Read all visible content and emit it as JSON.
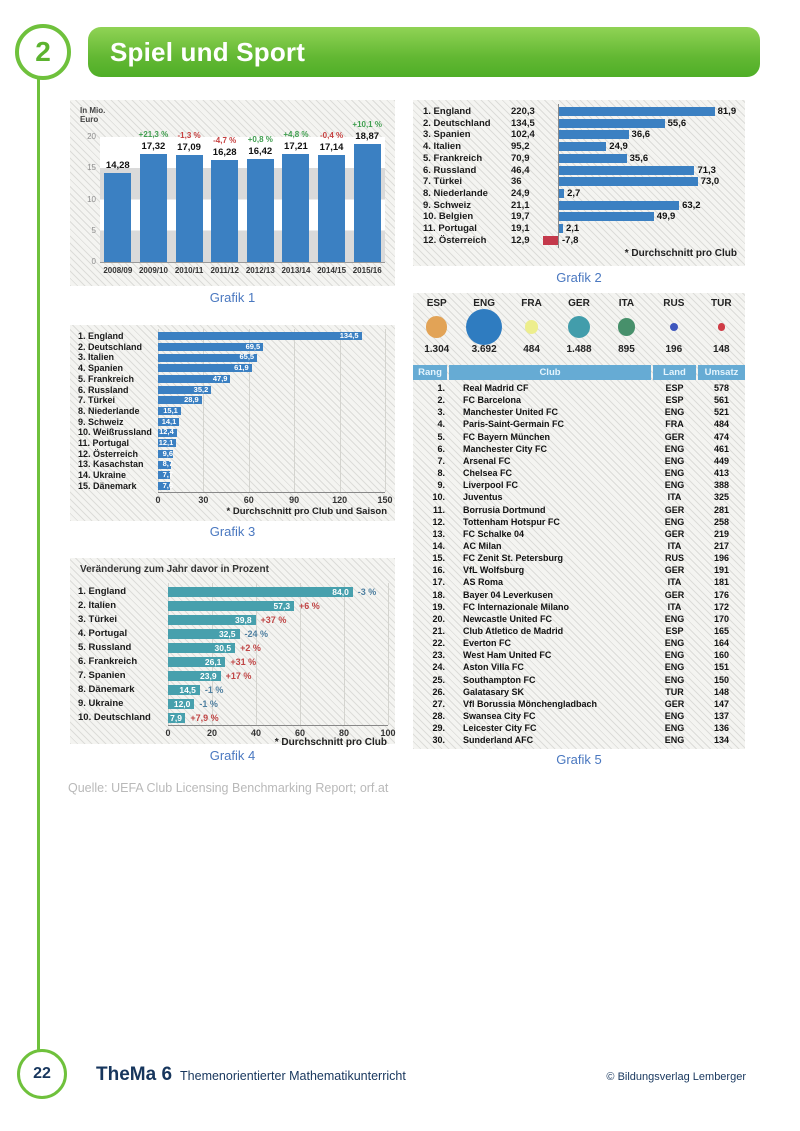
{
  "header": {
    "chapter_number": "2",
    "title": "Spiel und Sport"
  },
  "source_line": "Quelle: UEFA Club Licensing Benchmarking Report; orf.at",
  "footer": {
    "page_number": "22",
    "series_title": "TheMa 6",
    "series_subtitle": "Themenorientierter Mathematikunterricht",
    "copyright": "© Bildungsverlag Lemberger"
  },
  "colors": {
    "green": "#6fc13c",
    "bar_blue": "#3b80c2",
    "bar_teal": "#47a0ad",
    "bar_red": "#c4394b",
    "pct_green": "#3f9e4f",
    "pct_red": "#c64040",
    "pct_neg_blue": "#4e7fa0",
    "caption_blue": "#4a78c0",
    "navy": "#17365d",
    "table_header_blue": "#66abd4"
  },
  "chart_data": [
    {
      "id": "grafik1",
      "type": "bar",
      "caption": "Grafik 1",
      "unit_label_lines": [
        "In Mio.",
        "Euro"
      ],
      "categories": [
        "2008/09",
        "2009/10",
        "2010/11",
        "2011/12",
        "2012/13",
        "2013/14",
        "2014/15",
        "2015/16"
      ],
      "values": [
        14.28,
        17.32,
        17.09,
        16.28,
        16.42,
        17.21,
        17.14,
        18.87
      ],
      "value_labels": [
        "14,28",
        "17,32",
        "17,09",
        "16,28",
        "16,42",
        "17,21",
        "17,14",
        "18,87"
      ],
      "change_labels": [
        "",
        "+21,3 %",
        "-1,3 %",
        "-4,7 %",
        "+0,8 %",
        "+4,8 %",
        "-0,4 %",
        "+10,1 %"
      ],
      "change_positive": [
        null,
        true,
        false,
        false,
        true,
        true,
        false,
        true
      ],
      "ylim": [
        0,
        20
      ],
      "yticks": [
        0,
        5,
        10,
        15,
        20
      ],
      "grid": "zebra-bands",
      "legend": "none"
    },
    {
      "id": "grafik2",
      "type": "hbar",
      "caption": "Grafik 2",
      "footnote": "* Durchschnitt pro Club",
      "xmax": 82,
      "rows": [
        {
          "label": "1. England",
          "total": "220,3",
          "value": 81.9,
          "value_label": "81,9"
        },
        {
          "label": "2. Deutschland",
          "total": "134,5",
          "value": 55.6,
          "value_label": "55,6"
        },
        {
          "label": "3. Spanien",
          "total": "102,4",
          "value": 36.6,
          "value_label": "36,6"
        },
        {
          "label": "4. Italien",
          "total": "95,2",
          "value": 24.9,
          "value_label": "24,9"
        },
        {
          "label": "5. Frankreich",
          "total": "70,9",
          "value": 35.6,
          "value_label": "35,6"
        },
        {
          "label": "6. Russland",
          "total": "46,4",
          "value": 71.3,
          "value_label": "71,3"
        },
        {
          "label": "7. Türkei",
          "total": "36",
          "value": 73.0,
          "value_label": "73,0"
        },
        {
          "label": "8. Niederlande",
          "total": "24,9",
          "value": 2.7,
          "value_label": "2,7"
        },
        {
          "label": "9. Schweiz",
          "total": "21,1",
          "value": 63.2,
          "value_label": "63,2"
        },
        {
          "label": "10. Belgien",
          "total": "19,7",
          "value": 49.9,
          "value_label": "49,9"
        },
        {
          "label": "11. Portugal",
          "total": "19,1",
          "value": 2.1,
          "value_label": "2,1"
        },
        {
          "label": "12. Österreich",
          "total": "12,9",
          "value": -7.8,
          "value_label": "-7,8"
        }
      ]
    },
    {
      "id": "grafik3",
      "type": "hbar",
      "caption": "Grafik 3",
      "footnote": "* Durchschnitt pro Club und Saison",
      "xticks": [
        0,
        30,
        60,
        90,
        120,
        150
      ],
      "xmax": 150,
      "rows": [
        {
          "label": "1. England",
          "value": 134.5,
          "value_label": "134,5"
        },
        {
          "label": "2. Deutschland",
          "value": 69.5,
          "value_label": "69,5"
        },
        {
          "label": "3. Italien",
          "value": 65.5,
          "value_label": "65,5"
        },
        {
          "label": "4. Spanien",
          "value": 61.9,
          "value_label": "61,9"
        },
        {
          "label": "5. Frankreich",
          "value": 47.9,
          "value_label": "47,9"
        },
        {
          "label": "6. Russland",
          "value": 35.2,
          "value_label": "35,2"
        },
        {
          "label": "7. Türkei",
          "value": 28.9,
          "value_label": "28,9"
        },
        {
          "label": "8. Niederlande",
          "value": 15.1,
          "value_label": "15,1"
        },
        {
          "label": "9. Schweiz",
          "value": 14.1,
          "value_label": "14,1"
        },
        {
          "label": "10. Weißrussland",
          "value": 12.4,
          "value_label": "12,4"
        },
        {
          "label": "11. Portugal",
          "value": 12.1,
          "value_label": "12,1"
        },
        {
          "label": "12. Österreich",
          "value": 9.6,
          "value_label": "9,6"
        },
        {
          "label": "13. Kasachstan",
          "value": 8.7,
          "value_label": "8,7"
        },
        {
          "label": "14. Ukraine",
          "value": 7.7,
          "value_label": "7,7"
        },
        {
          "label": "15. Dänemark",
          "value": 7.6,
          "value_label": "7,6"
        }
      ]
    },
    {
      "id": "grafik4",
      "type": "hbar",
      "caption": "Grafik 4",
      "title": "Veränderung zum Jahr davor in Prozent",
      "footnote": "* Durchschnitt pro Club",
      "xticks": [
        0,
        20,
        40,
        60,
        80,
        100
      ],
      "xmax": 100,
      "rows": [
        {
          "label": "1. England",
          "value": 84.0,
          "value_label": "84,0",
          "change": "-3 %",
          "change_positive": false
        },
        {
          "label": "2. Italien",
          "value": 57.3,
          "value_label": "57,3",
          "change": "+6 %",
          "change_positive": true
        },
        {
          "label": "3. Türkei",
          "value": 39.8,
          "value_label": "39,8",
          "change": "+37 %",
          "change_positive": true
        },
        {
          "label": "4. Portugal",
          "value": 32.5,
          "value_label": "32,5",
          "change": "-24 %",
          "change_positive": false
        },
        {
          "label": "5. Russland",
          "value": 30.5,
          "value_label": "30,5",
          "change": "+2 %",
          "change_positive": true
        },
        {
          "label": "6. Frankreich",
          "value": 26.1,
          "value_label": "26,1",
          "change": "+31 %",
          "change_positive": true
        },
        {
          "label": "7. Spanien",
          "value": 23.9,
          "value_label": "23,9",
          "change": "+17 %",
          "change_positive": true
        },
        {
          "label": "8. Dänemark",
          "value": 14.5,
          "value_label": "14,5",
          "change": "-1 %",
          "change_positive": false
        },
        {
          "label": "9. Ukraine",
          "value": 12.0,
          "value_label": "12,0",
          "change": "-1 %",
          "change_positive": false
        },
        {
          "label": "10. Deutschland",
          "value": 7.9,
          "value_label": "7,9",
          "change": "+7,9 %",
          "change_positive": true
        }
      ]
    },
    {
      "id": "grafik5",
      "type": "table",
      "caption": "Grafik 5",
      "bubbles": [
        {
          "code": "ESP",
          "value": 1304,
          "value_label": "1.304",
          "color": "#e2a356"
        },
        {
          "code": "ENG",
          "value": 3692,
          "value_label": "3.692",
          "color": "#2f7cc0"
        },
        {
          "code": "FRA",
          "value": 484,
          "value_label": "484",
          "color": "#edee8d"
        },
        {
          "code": "GER",
          "value": 1488,
          "value_label": "1.488",
          "color": "#429dab"
        },
        {
          "code": "ITA",
          "value": 895,
          "value_label": "895",
          "color": "#47906b"
        },
        {
          "code": "RUS",
          "value": 196,
          "value_label": "196",
          "color": "#3d56bd"
        },
        {
          "code": "TUR",
          "value": 148,
          "value_label": "148",
          "color": "#cf3b45"
        }
      ],
      "columns": [
        "Rang",
        "Club",
        "Land",
        "Umsatz"
      ],
      "rows": [
        [
          "1.",
          "Real Madrid CF",
          "ESP",
          "578"
        ],
        [
          "2.",
          "FC Barcelona",
          "ESP",
          "561"
        ],
        [
          "3.",
          "Manchester United FC",
          "ENG",
          "521"
        ],
        [
          "4.",
          "Paris-Saint-Germain FC",
          "FRA",
          "484"
        ],
        [
          "5.",
          "FC Bayern München",
          "GER",
          "474"
        ],
        [
          "6.",
          "Manchester City FC",
          "ENG",
          "461"
        ],
        [
          "7.",
          "Arsenal FC",
          "ENG",
          "449"
        ],
        [
          "8.",
          "Chelsea FC",
          "ENG",
          "413"
        ],
        [
          "9.",
          "Liverpool FC",
          "ENG",
          "388"
        ],
        [
          "10.",
          "Juventus",
          "ITA",
          "325"
        ],
        [
          "11.",
          "Borrusia Dortmund",
          "GER",
          "281"
        ],
        [
          "12.",
          "Tottenham Hotspur FC",
          "ENG",
          "258"
        ],
        [
          "13.",
          "FC Schalke 04",
          "GER",
          "219"
        ],
        [
          "14.",
          "AC Milan",
          "ITA",
          "217"
        ],
        [
          "15.",
          "FC Zenit St. Petersburg",
          "RUS",
          "196"
        ],
        [
          "16.",
          "VfL Wolfsburg",
          "GER",
          "191"
        ],
        [
          "17.",
          "AS Roma",
          "ITA",
          "181"
        ],
        [
          "18.",
          "Bayer 04 Leverkusen",
          "GER",
          "176"
        ],
        [
          "19.",
          "FC Internazionale Milano",
          "ITA",
          "172"
        ],
        [
          "20.",
          "Newcastle United FC",
          "ENG",
          "170"
        ],
        [
          "21.",
          "Club Atletico de Madrid",
          "ESP",
          "165"
        ],
        [
          "22.",
          "Everton FC",
          "ENG",
          "164"
        ],
        [
          "23.",
          "West Ham United FC",
          "ENG",
          "160"
        ],
        [
          "24.",
          "Aston Villa FC",
          "ENG",
          "151"
        ],
        [
          "25.",
          "Southampton FC",
          "ENG",
          "150"
        ],
        [
          "26.",
          "Galatasary SK",
          "TUR",
          "148"
        ],
        [
          "27.",
          "Vfl Borussia Mönchengladbach",
          "GER",
          "147"
        ],
        [
          "28.",
          "Swansea City FC",
          "ENG",
          "137"
        ],
        [
          "29.",
          "Leicester City FC",
          "ENG",
          "136"
        ],
        [
          "30.",
          "Sunderland AFC",
          "ENG",
          "134"
        ]
      ]
    }
  ]
}
